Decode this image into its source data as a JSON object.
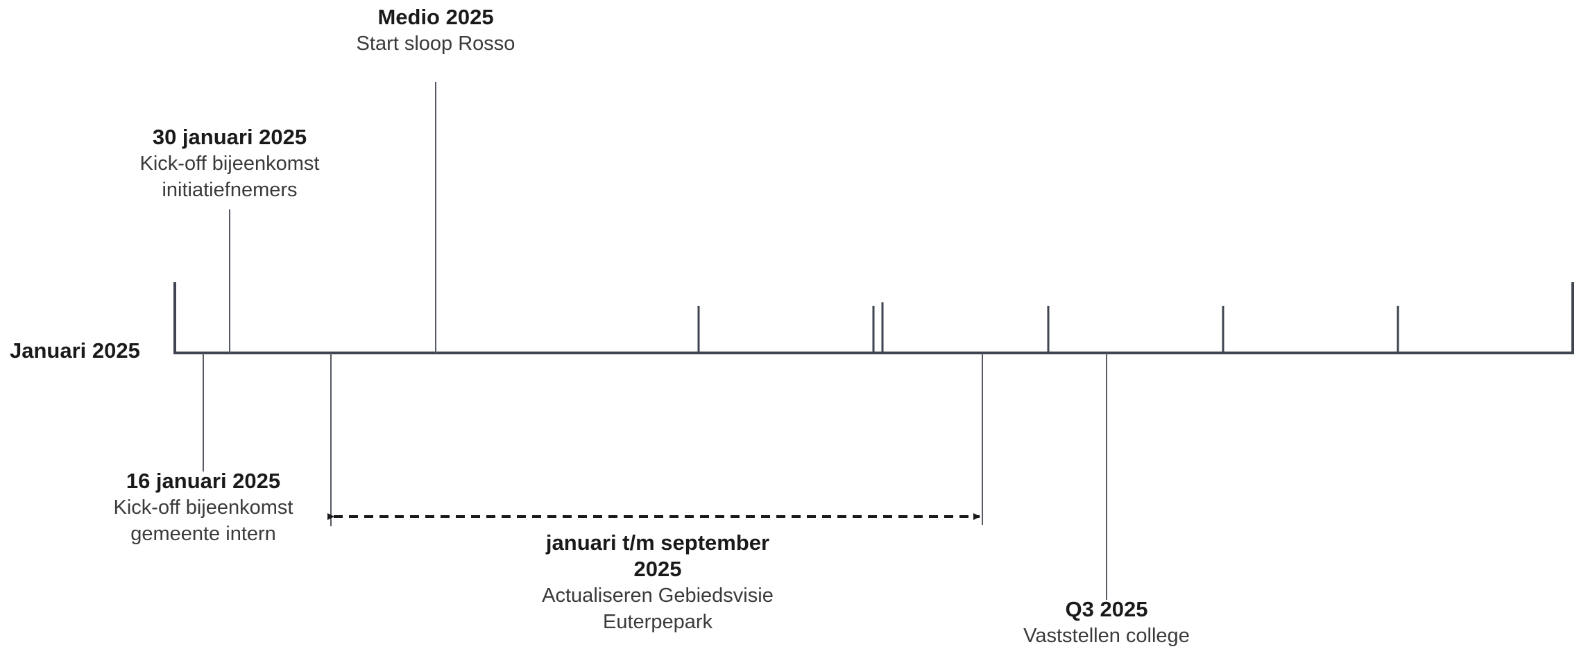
{
  "axis_label": "Januari 2025",
  "events": [
    {
      "date": "Medio 2025",
      "text": "Start sloop Rosso"
    },
    {
      "date": "30 januari 2025",
      "text": "Kick-off bijeenkomst initiatiefnemers"
    },
    {
      "date": "16 januari 2025",
      "text": "Kick-off bijeenkomst gemeente intern"
    },
    {
      "date": "januari t/m september 2025",
      "text": "Actualiseren Gebiedsvisie Euterpepark"
    },
    {
      "date": "Q3 2025",
      "text": "Vaststellen college"
    }
  ],
  "colors": {
    "axis": "#3f4550",
    "connector": "#555a63",
    "date_text": "#1a1a1a",
    "desc_text": "#3a3a3a"
  }
}
